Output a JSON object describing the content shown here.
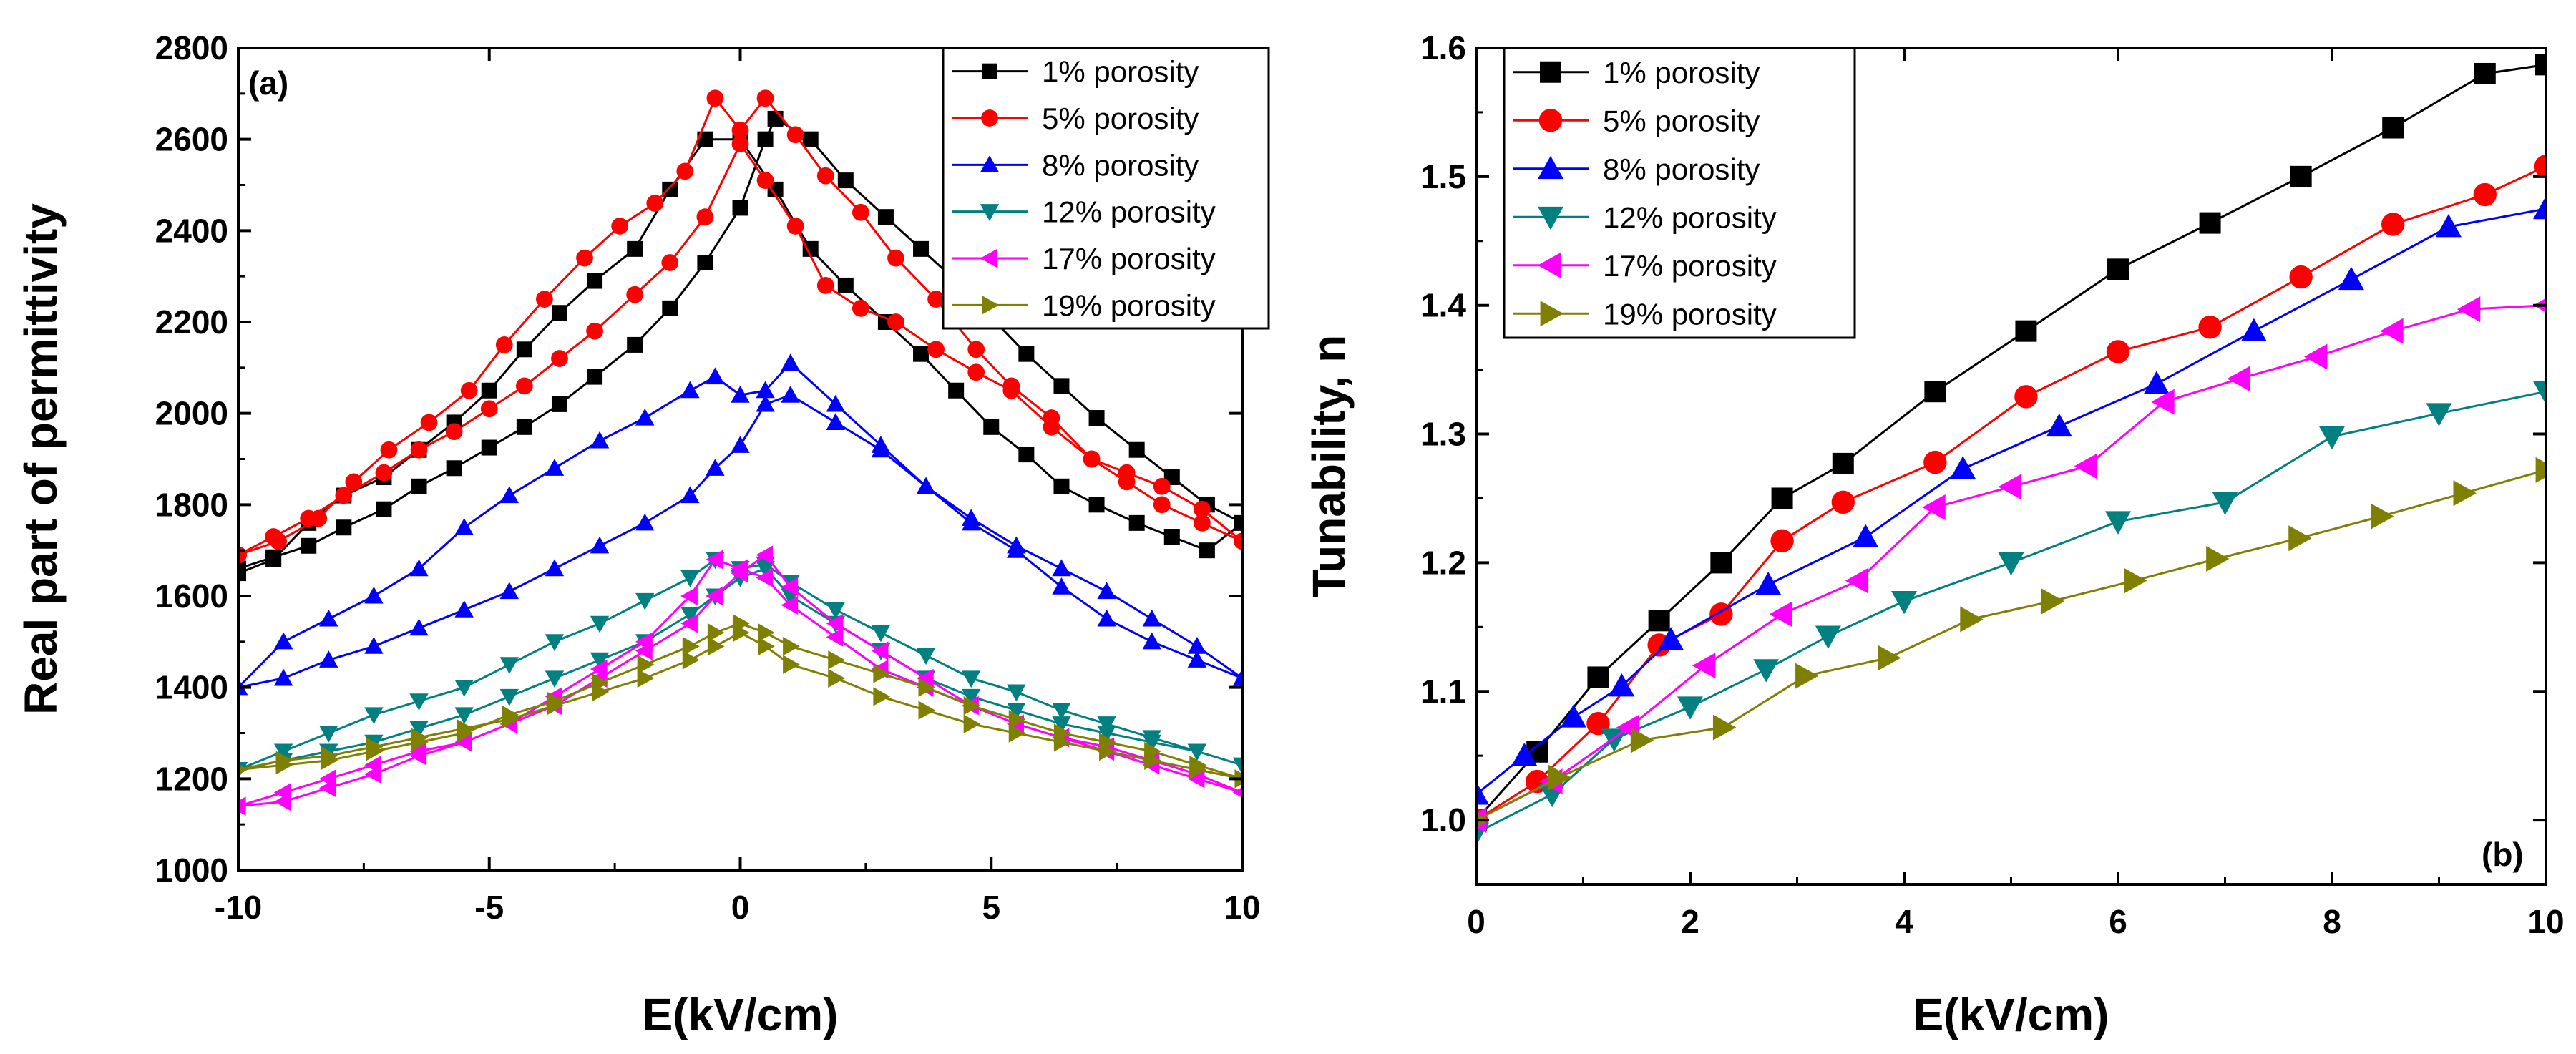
{
  "chart_data": [
    {
      "type": "line",
      "panel_label": "(a)",
      "xlabel": "E(kV/cm)",
      "ylabel": "Real part of permittivity",
      "xlim": [
        -10,
        10
      ],
      "ylim": [
        1000,
        2800
      ],
      "x_ticks": [
        "-10",
        "-5",
        "0",
        "5",
        "10"
      ],
      "y_ticks": [
        "1000",
        "1200",
        "1400",
        "1600",
        "1800",
        "2000",
        "2200",
        "2400",
        "2600",
        "2800"
      ],
      "legend_position": "top-right",
      "series": [
        {
          "name": "1% porosity",
          "color": "#000000",
          "marker": "square",
          "x": [
            -10,
            -9.3,
            -8.6,
            -7.9,
            -7.1,
            -6.4,
            -5.7,
            -5.0,
            -4.3,
            -3.6,
            -2.9,
            -2.1,
            -1.4,
            -0.7,
            0,
            0.5,
            0.7,
            1.4,
            2.1,
            2.9,
            3.6,
            4.3,
            5.0,
            5.7,
            6.4,
            7.1,
            7.9,
            8.6,
            9.3,
            10,
            9.3,
            8.6,
            7.9,
            7.1,
            6.4,
            5.7,
            5.0,
            4.3,
            3.6,
            2.9,
            2.1,
            1.4,
            0.7,
            0,
            -0.7,
            -1.4,
            -2.1,
            -2.9,
            -3.6,
            -4.3,
            -5.0,
            -5.7,
            -6.4,
            -7.1,
            -7.9,
            -8.6,
            -9.3,
            -10
          ],
          "y": [
            1660,
            1685,
            1710,
            1750,
            1790,
            1840,
            1880,
            1925,
            1970,
            2020,
            2080,
            2150,
            2230,
            2330,
            2450,
            2600,
            2645,
            2600,
            2510,
            2430,
            2360,
            2290,
            2210,
            2130,
            2060,
            1990,
            1920,
            1860,
            1800,
            1760,
            1700,
            1730,
            1760,
            1800,
            1840,
            1910,
            1970,
            2050,
            2130,
            2200,
            2280,
            2360,
            2490,
            2600,
            2600,
            2490,
            2360,
            2290,
            2220,
            2140,
            2050,
            1980,
            1920,
            1860,
            1820,
            1760,
            1680,
            1650
          ]
        },
        {
          "name": "5% porosity",
          "color": "#ff0000",
          "marker": "circle",
          "x": [
            -10,
            -9.3,
            -8.6,
            -7.9,
            -7.1,
            -6.4,
            -5.7,
            -5.0,
            -4.3,
            -3.6,
            -2.9,
            -2.1,
            -1.4,
            -0.7,
            0,
            0.5,
            1.1,
            1.7,
            2.4,
            3.1,
            3.9,
            4.7,
            5.4,
            6.2,
            7.0,
            7.7,
            8.4,
            9.2,
            10,
            9.2,
            8.4,
            7.7,
            7.0,
            6.2,
            5.4,
            4.7,
            3.9,
            3.1,
            2.4,
            1.7,
            1.1,
            0.5,
            0,
            -0.5,
            -1.1,
            -1.7,
            -2.4,
            -3.1,
            -3.9,
            -4.7,
            -5.4,
            -6.2,
            -7.0,
            -7.7,
            -8.4,
            -9.2,
            -10
          ],
          "y": [
            1690,
            1730,
            1770,
            1820,
            1870,
            1920,
            1960,
            2010,
            2060,
            2120,
            2180,
            2260,
            2330,
            2430,
            2590,
            2510,
            2410,
            2280,
            2230,
            2200,
            2140,
            2090,
            2050,
            1970,
            1900,
            1850,
            1800,
            1760,
            1720,
            1790,
            1840,
            1870,
            1900,
            1990,
            2060,
            2140,
            2250,
            2340,
            2440,
            2520,
            2610,
            2690,
            2620,
            2690,
            2530,
            2460,
            2410,
            2340,
            2250,
            2150,
            2050,
            1980,
            1920,
            1850,
            1770,
            1720,
            1690
          ]
        },
        {
          "name": "8% porosity",
          "color": "#0000ff",
          "marker": "triangle-up",
          "x": [
            -10,
            -9.1,
            -8.2,
            -7.3,
            -6.4,
            -5.5,
            -4.6,
            -3.7,
            -2.8,
            -1.9,
            -1.0,
            -0.5,
            0,
            0.5,
            1.0,
            1.9,
            2.8,
            3.7,
            4.6,
            5.5,
            6.4,
            7.3,
            8.2,
            9.1,
            10,
            9.1,
            8.2,
            7.3,
            6.4,
            5.5,
            4.6,
            3.7,
            2.8,
            1.9,
            1.0,
            0.5,
            0,
            -0.5,
            -1.0,
            -1.9,
            -2.8,
            -3.7,
            -4.6,
            -5.5,
            -6.4,
            -7.3,
            -8.2,
            -9.1,
            -10
          ],
          "y": [
            1400,
            1420,
            1460,
            1490,
            1530,
            1570,
            1610,
            1660,
            1710,
            1760,
            1820,
            1880,
            1930,
            2020,
            2040,
            1980,
            1920,
            1840,
            1770,
            1710,
            1660,
            1610,
            1550,
            1490,
            1420,
            1460,
            1500,
            1550,
            1620,
            1700,
            1760,
            1840,
            1930,
            2020,
            2110,
            2050,
            2040,
            2080,
            2050,
            1990,
            1940,
            1880,
            1820,
            1750,
            1660,
            1600,
            1550,
            1500,
            1400
          ]
        },
        {
          "name": "12% porosity",
          "color": "#008080",
          "marker": "triangle-down",
          "x": [
            -10,
            -9.1,
            -8.2,
            -7.3,
            -6.4,
            -5.5,
            -4.6,
            -3.7,
            -2.8,
            -1.9,
            -1.0,
            -0.5,
            0,
            0.5,
            1.0,
            1.9,
            2.8,
            3.7,
            4.6,
            5.5,
            6.4,
            7.3,
            8.2,
            9.1,
            10,
            9.1,
            8.2,
            7.3,
            6.4,
            5.5,
            4.6,
            3.7,
            2.8,
            1.9,
            1.0,
            0.5,
            0,
            -0.5,
            -1.0,
            -1.9,
            -2.8,
            -3.7,
            -4.6,
            -5.5,
            -6.4,
            -7.3,
            -8.2,
            -9.1,
            -10
          ],
          "y": [
            1220,
            1240,
            1260,
            1280,
            1310,
            1340,
            1380,
            1420,
            1460,
            1500,
            1560,
            1600,
            1640,
            1660,
            1600,
            1540,
            1480,
            1420,
            1380,
            1350,
            1320,
            1300,
            1280,
            1260,
            1230,
            1260,
            1290,
            1320,
            1350,
            1390,
            1420,
            1470,
            1520,
            1570,
            1630,
            1670,
            1660,
            1680,
            1640,
            1590,
            1540,
            1500,
            1450,
            1400,
            1370,
            1340,
            1300,
            1260,
            1220
          ]
        },
        {
          "name": "17% porosity",
          "color": "#ff00ff",
          "marker": "triangle-left",
          "x": [
            -10,
            -9.1,
            -8.2,
            -7.3,
            -6.4,
            -5.5,
            -4.6,
            -3.7,
            -2.8,
            -1.9,
            -1.0,
            -0.5,
            0,
            0.5,
            1.0,
            1.9,
            2.8,
            3.7,
            4.6,
            5.5,
            6.4,
            7.3,
            8.2,
            9.1,
            10,
            9.1,
            8.2,
            7.3,
            6.4,
            5.5,
            4.6,
            3.7,
            2.8,
            1.9,
            1.0,
            0.5,
            0,
            -0.5,
            -1.0,
            -1.9,
            -2.8,
            -3.7,
            -4.6,
            -5.5,
            -6.4,
            -7.3,
            -8.2,
            -9.1,
            -10
          ],
          "y": [
            1140,
            1170,
            1200,
            1230,
            1260,
            1280,
            1320,
            1360,
            1420,
            1480,
            1540,
            1600,
            1650,
            1690,
            1620,
            1540,
            1480,
            1420,
            1360,
            1320,
            1290,
            1260,
            1230,
            1200,
            1170,
            1210,
            1240,
            1270,
            1290,
            1320,
            1360,
            1400,
            1440,
            1510,
            1580,
            1640,
            1660,
            1680,
            1600,
            1500,
            1440,
            1380,
            1320,
            1280,
            1250,
            1210,
            1180,
            1150,
            1140
          ]
        },
        {
          "name": "19% porosity",
          "color": "#808000",
          "marker": "triangle-right",
          "x": [
            -10,
            -9.1,
            -8.2,
            -7.3,
            -6.4,
            -5.5,
            -4.6,
            -3.7,
            -2.8,
            -1.9,
            -1.0,
            -0.5,
            0,
            0.5,
            1.0,
            1.9,
            2.8,
            3.7,
            4.6,
            5.5,
            6.4,
            7.3,
            8.2,
            9.1,
            10,
            9.1,
            8.2,
            7.3,
            6.4,
            5.5,
            4.6,
            3.7,
            2.8,
            1.9,
            1.0,
            0.5,
            0,
            -0.5,
            -1.0,
            -1.9,
            -2.8,
            -3.7,
            -4.6,
            -5.5,
            -6.4,
            -7.3,
            -8.2,
            -9.1,
            -10
          ],
          "y": [
            1220,
            1240,
            1250,
            1270,
            1290,
            1310,
            1330,
            1360,
            1390,
            1420,
            1460,
            1490,
            1520,
            1490,
            1450,
            1420,
            1380,
            1350,
            1320,
            1300,
            1280,
            1260,
            1240,
            1220,
            1200,
            1230,
            1260,
            1280,
            1300,
            1330,
            1360,
            1400,
            1430,
            1460,
            1490,
            1520,
            1540,
            1520,
            1490,
            1450,
            1410,
            1370,
            1340,
            1300,
            1280,
            1260,
            1240,
            1230,
            1220
          ]
        }
      ]
    },
    {
      "type": "line",
      "panel_label": "(b)",
      "xlabel": "E(kV/cm)",
      "ylabel": "Tunability, n",
      "xlim": [
        0,
        10
      ],
      "ylim": [
        0.95,
        1.6
      ],
      "x_ticks": [
        "0",
        "2",
        "4",
        "6",
        "8",
        "10"
      ],
      "y_ticks": [
        "1.0",
        "1.1",
        "1.2",
        "1.3",
        "1.4",
        "1.5",
        "1.6"
      ],
      "legend_position": "top-left",
      "series": [
        {
          "name": "1% porosity",
          "color": "#000000",
          "marker": "square",
          "x": [
            0,
            0.57,
            1.14,
            1.71,
            2.29,
            2.86,
            3.43,
            4.29,
            5.14,
            6.0,
            6.86,
            7.71,
            8.57,
            9.43,
            10
          ],
          "y": [
            1.0,
            1.053,
            1.111,
            1.155,
            1.2,
            1.25,
            1.277,
            1.333,
            1.38,
            1.428,
            1.464,
            1.5,
            1.538,
            1.58,
            1.587
          ]
        },
        {
          "name": "5% porosity",
          "color": "#ff0000",
          "marker": "circle",
          "x": [
            0,
            0.57,
            1.14,
            1.71,
            2.29,
            2.86,
            3.43,
            4.29,
            5.14,
            6.0,
            6.86,
            7.71,
            8.57,
            9.43,
            10
          ],
          "y": [
            1.0,
            1.03,
            1.075,
            1.136,
            1.16,
            1.217,
            1.247,
            1.278,
            1.329,
            1.364,
            1.383,
            1.422,
            1.463,
            1.486,
            1.508
          ]
        },
        {
          "name": "8% porosity",
          "color": "#0000ff",
          "marker": "triangle-up",
          "x": [
            0,
            0.45,
            0.91,
            1.36,
            1.82,
            2.73,
            3.64,
            4.55,
            5.45,
            6.36,
            7.27,
            8.18,
            9.09,
            10
          ],
          "y": [
            1.02,
            1.05,
            1.08,
            1.104,
            1.14,
            1.183,
            1.22,
            1.273,
            1.306,
            1.339,
            1.38,
            1.42,
            1.461,
            1.475
          ]
        },
        {
          "name": "12% porosity",
          "color": "#008080",
          "marker": "triangle-down",
          "x": [
            0,
            0.71,
            1.29,
            2.0,
            2.71,
            3.29,
            4.0,
            5.0,
            6.0,
            7.0,
            8.0,
            9.0,
            10
          ],
          "y": [
            0.99,
            1.02,
            1.063,
            1.088,
            1.117,
            1.143,
            1.17,
            1.2,
            1.232,
            1.247,
            1.298,
            1.316,
            1.333
          ]
        },
        {
          "name": "17% porosity",
          "color": "#ff00ff",
          "marker": "triangle-left",
          "x": [
            0,
            0.71,
            1.43,
            2.14,
            2.86,
            3.57,
            4.29,
            5.0,
            5.71,
            6.43,
            7.14,
            7.86,
            8.57,
            9.29,
            10
          ],
          "y": [
            1.0,
            1.03,
            1.072,
            1.12,
            1.16,
            1.186,
            1.243,
            1.259,
            1.275,
            1.325,
            1.343,
            1.36,
            1.38,
            1.397,
            1.4
          ]
        },
        {
          "name": "19% porosity",
          "color": "#808000",
          "marker": "triangle-right",
          "x": [
            0,
            0.77,
            1.54,
            2.31,
            3.08,
            3.85,
            4.62,
            5.38,
            6.15,
            6.92,
            7.69,
            8.46,
            9.23,
            10
          ],
          "y": [
            1.0,
            1.033,
            1.062,
            1.072,
            1.112,
            1.126,
            1.156,
            1.17,
            1.186,
            1.203,
            1.219,
            1.236,
            1.254,
            1.272
          ]
        }
      ]
    }
  ]
}
